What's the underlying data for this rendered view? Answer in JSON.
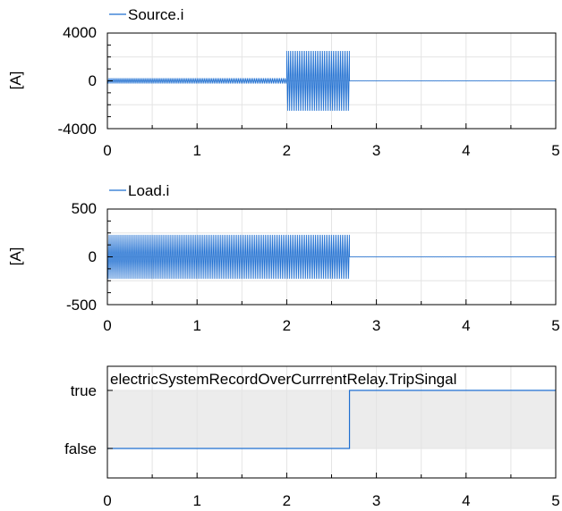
{
  "colors": {
    "series": "#1f6fd1",
    "grid": "#e4e4e4",
    "axis": "#000000",
    "shade": "#ececec"
  },
  "chart_data": [
    {
      "type": "line",
      "legend": "Source.i",
      "ylabel": "[A]",
      "xlim": [
        0,
        5
      ],
      "ylim": [
        -4000,
        4000
      ],
      "xticks": [
        "0",
        "1",
        "2",
        "3",
        "4",
        "5"
      ],
      "yticks": [
        "4000",
        "0",
        "-4000"
      ],
      "grid": true,
      "series": [
        {
          "name": "Source.i",
          "kind": "oscillation",
          "frequency_hz": 50,
          "segments": [
            {
              "t_start": 0.0,
              "t_end": 2.0,
              "amplitude": 230
            },
            {
              "t_start": 2.0,
              "t_end": 2.7,
              "amplitude": 2500
            },
            {
              "t_start": 2.7,
              "t_end": 5.0,
              "amplitude": 15
            }
          ]
        }
      ]
    },
    {
      "type": "line",
      "legend": "Load.i",
      "ylabel": "[A]",
      "xlim": [
        0,
        5
      ],
      "ylim": [
        -500,
        500
      ],
      "xticks": [
        "0",
        "1",
        "2",
        "3",
        "4",
        "5"
      ],
      "yticks": [
        "500",
        "0",
        "-500"
      ],
      "grid": true,
      "series": [
        {
          "name": "Load.i",
          "kind": "oscillation",
          "frequency_hz": 50,
          "segments": [
            {
              "t_start": 0.0,
              "t_end": 2.7,
              "amplitude": 230
            },
            {
              "t_start": 2.7,
              "t_end": 5.0,
              "amplitude": 2
            }
          ]
        }
      ]
    },
    {
      "type": "step",
      "legend": "electricSystemRecordOverCurrrentRelay.TripSingal",
      "ylabel": "",
      "xlim": [
        0,
        5
      ],
      "ylim": [
        "false",
        "true"
      ],
      "xticks": [
        "0",
        "1",
        "2",
        "3",
        "4",
        "5"
      ],
      "yticks": [
        "true",
        "false"
      ],
      "grid": true,
      "series": [
        {
          "name": "electricSystemRecordOverCurrrentRelay.TripSingal",
          "points": [
            [
              0.0,
              0
            ],
            [
              2.7,
              0
            ],
            [
              2.7,
              1
            ],
            [
              5.0,
              1
            ]
          ]
        }
      ]
    }
  ]
}
